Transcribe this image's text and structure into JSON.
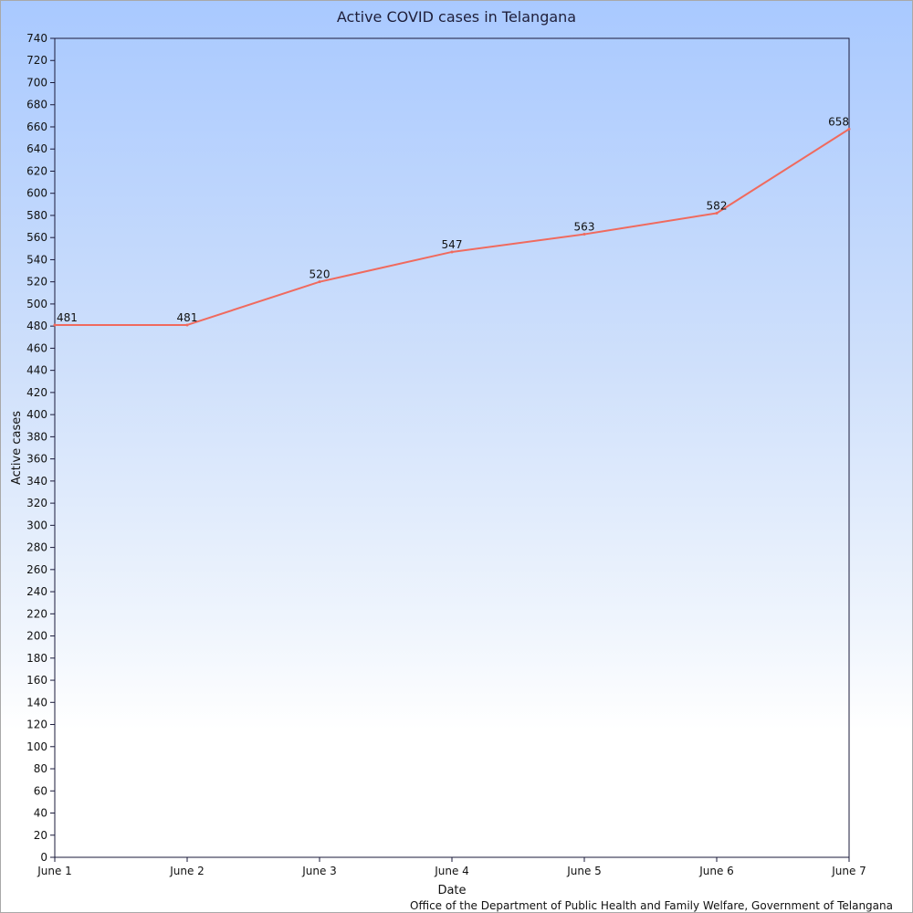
{
  "chart_data": {
    "type": "line",
    "title": "Active COVID cases in Telangana",
    "xlabel": "Date",
    "ylabel": "Active cases",
    "source": "Office of the Department of Public Health and Family Welfare, Government of Telangana",
    "categories": [
      "June 1",
      "June 2",
      "June 3",
      "June 4",
      "June 5",
      "June 6",
      "June 7"
    ],
    "series": [
      {
        "values": [
          481,
          481,
          520,
          547,
          563,
          582,
          658
        ]
      }
    ],
    "ylim": [
      0,
      740
    ],
    "ytick_step": 20,
    "data_labels": true,
    "grid": false,
    "line_color": "#f06a5e",
    "axis_color": "#1a1a3a",
    "text_color": "#111111"
  }
}
